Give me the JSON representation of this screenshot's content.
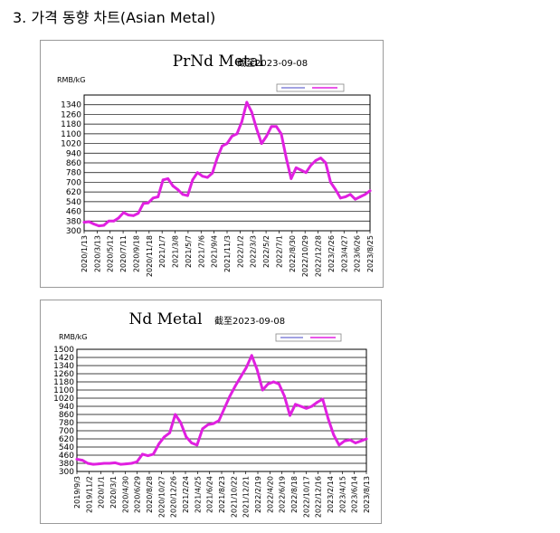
{
  "page": {
    "heading": "3.  가격 동향 차트(Asian Metal)"
  },
  "chart_data": [
    {
      "type": "line",
      "title": "PrNd Metal",
      "date_note": "截至2023-09-08",
      "ylabel": "RMB/kG",
      "yticks": [
        300,
        380,
        460,
        540,
        620,
        700,
        780,
        860,
        940,
        1020,
        1100,
        1180,
        1260,
        1340
      ],
      "ylim": [
        300,
        1420
      ],
      "xticks": [
        "2020/1/13",
        "2020/3/13",
        "2020/5/12",
        "2020/7/11",
        "2020/9/18",
        "2020/11/18",
        "2021/1/7",
        "2021/3/8",
        "2021/5/7",
        "2021/7/6",
        "2021/9/4",
        "2021/11/3",
        "2022/1/2",
        "2022/3/3",
        "2022/5/2",
        "2022/7/1",
        "2022/8/30",
        "2022/10/29",
        "2022/12/28",
        "2023/2/26",
        "2023/4/27",
        "2023/6/26",
        "2023/8/25"
      ],
      "grid": true,
      "legend": "top-right",
      "series": [
        {
          "color": "#e020e0",
          "values": [
            370,
            375,
            355,
            340,
            345,
            380,
            380,
            405,
            450,
            430,
            425,
            445,
            525,
            530,
            570,
            580,
            720,
            730,
            670,
            640,
            600,
            590,
            720,
            780,
            750,
            740,
            775,
            900,
            1000,
            1020,
            1080,
            1100,
            1200,
            1360,
            1280,
            1140,
            1020,
            1080,
            1160,
            1160,
            1100,
            900,
            730,
            820,
            800,
            780,
            840,
            880,
            900,
            860,
            700,
            640,
            570,
            580,
            600,
            560,
            580,
            600,
            630
          ]
        }
      ]
    },
    {
      "type": "line",
      "title": "Nd Metal",
      "date_note": "截至2023-09-08",
      "ylabel": "RMB/kG",
      "yticks": [
        300,
        380,
        460,
        540,
        620,
        700,
        780,
        860,
        940,
        1020,
        1100,
        1180,
        1260,
        1340,
        1420,
        1500
      ],
      "ylim": [
        300,
        1500
      ],
      "xticks": [
        "2019/9/3",
        "2019/11/2",
        "2020/1/1",
        "2020/3/1",
        "2020/4/30",
        "2020/6/29",
        "2020/8/28",
        "2020/10/27",
        "2020/12/26",
        "2021/2/24",
        "2021/4/25",
        "2021/6/24",
        "2021/8/23",
        "2021/10/22",
        "2021/12/21",
        "2022/2/19",
        "2022/4/20",
        "2022/6/19",
        "2022/8/18",
        "2022/10/17",
        "2022/12/16",
        "2023/2/14",
        "2023/4/15",
        "2023/6/14",
        "2023/8/13"
      ],
      "grid": true,
      "legend": "top-right",
      "series": [
        {
          "color": "#e020e0",
          "values": [
            420,
            410,
            380,
            370,
            375,
            380,
            380,
            385,
            370,
            375,
            380,
            395,
            470,
            455,
            470,
            570,
            640,
            680,
            860,
            780,
            640,
            580,
            560,
            720,
            760,
            770,
            800,
            920,
            1040,
            1140,
            1230,
            1320,
            1440,
            1300,
            1100,
            1160,
            1180,
            1160,
            1040,
            850,
            960,
            940,
            920,
            940,
            980,
            1010,
            820,
            660,
            560,
            600,
            610,
            580,
            600,
            620
          ]
        }
      ]
    }
  ]
}
